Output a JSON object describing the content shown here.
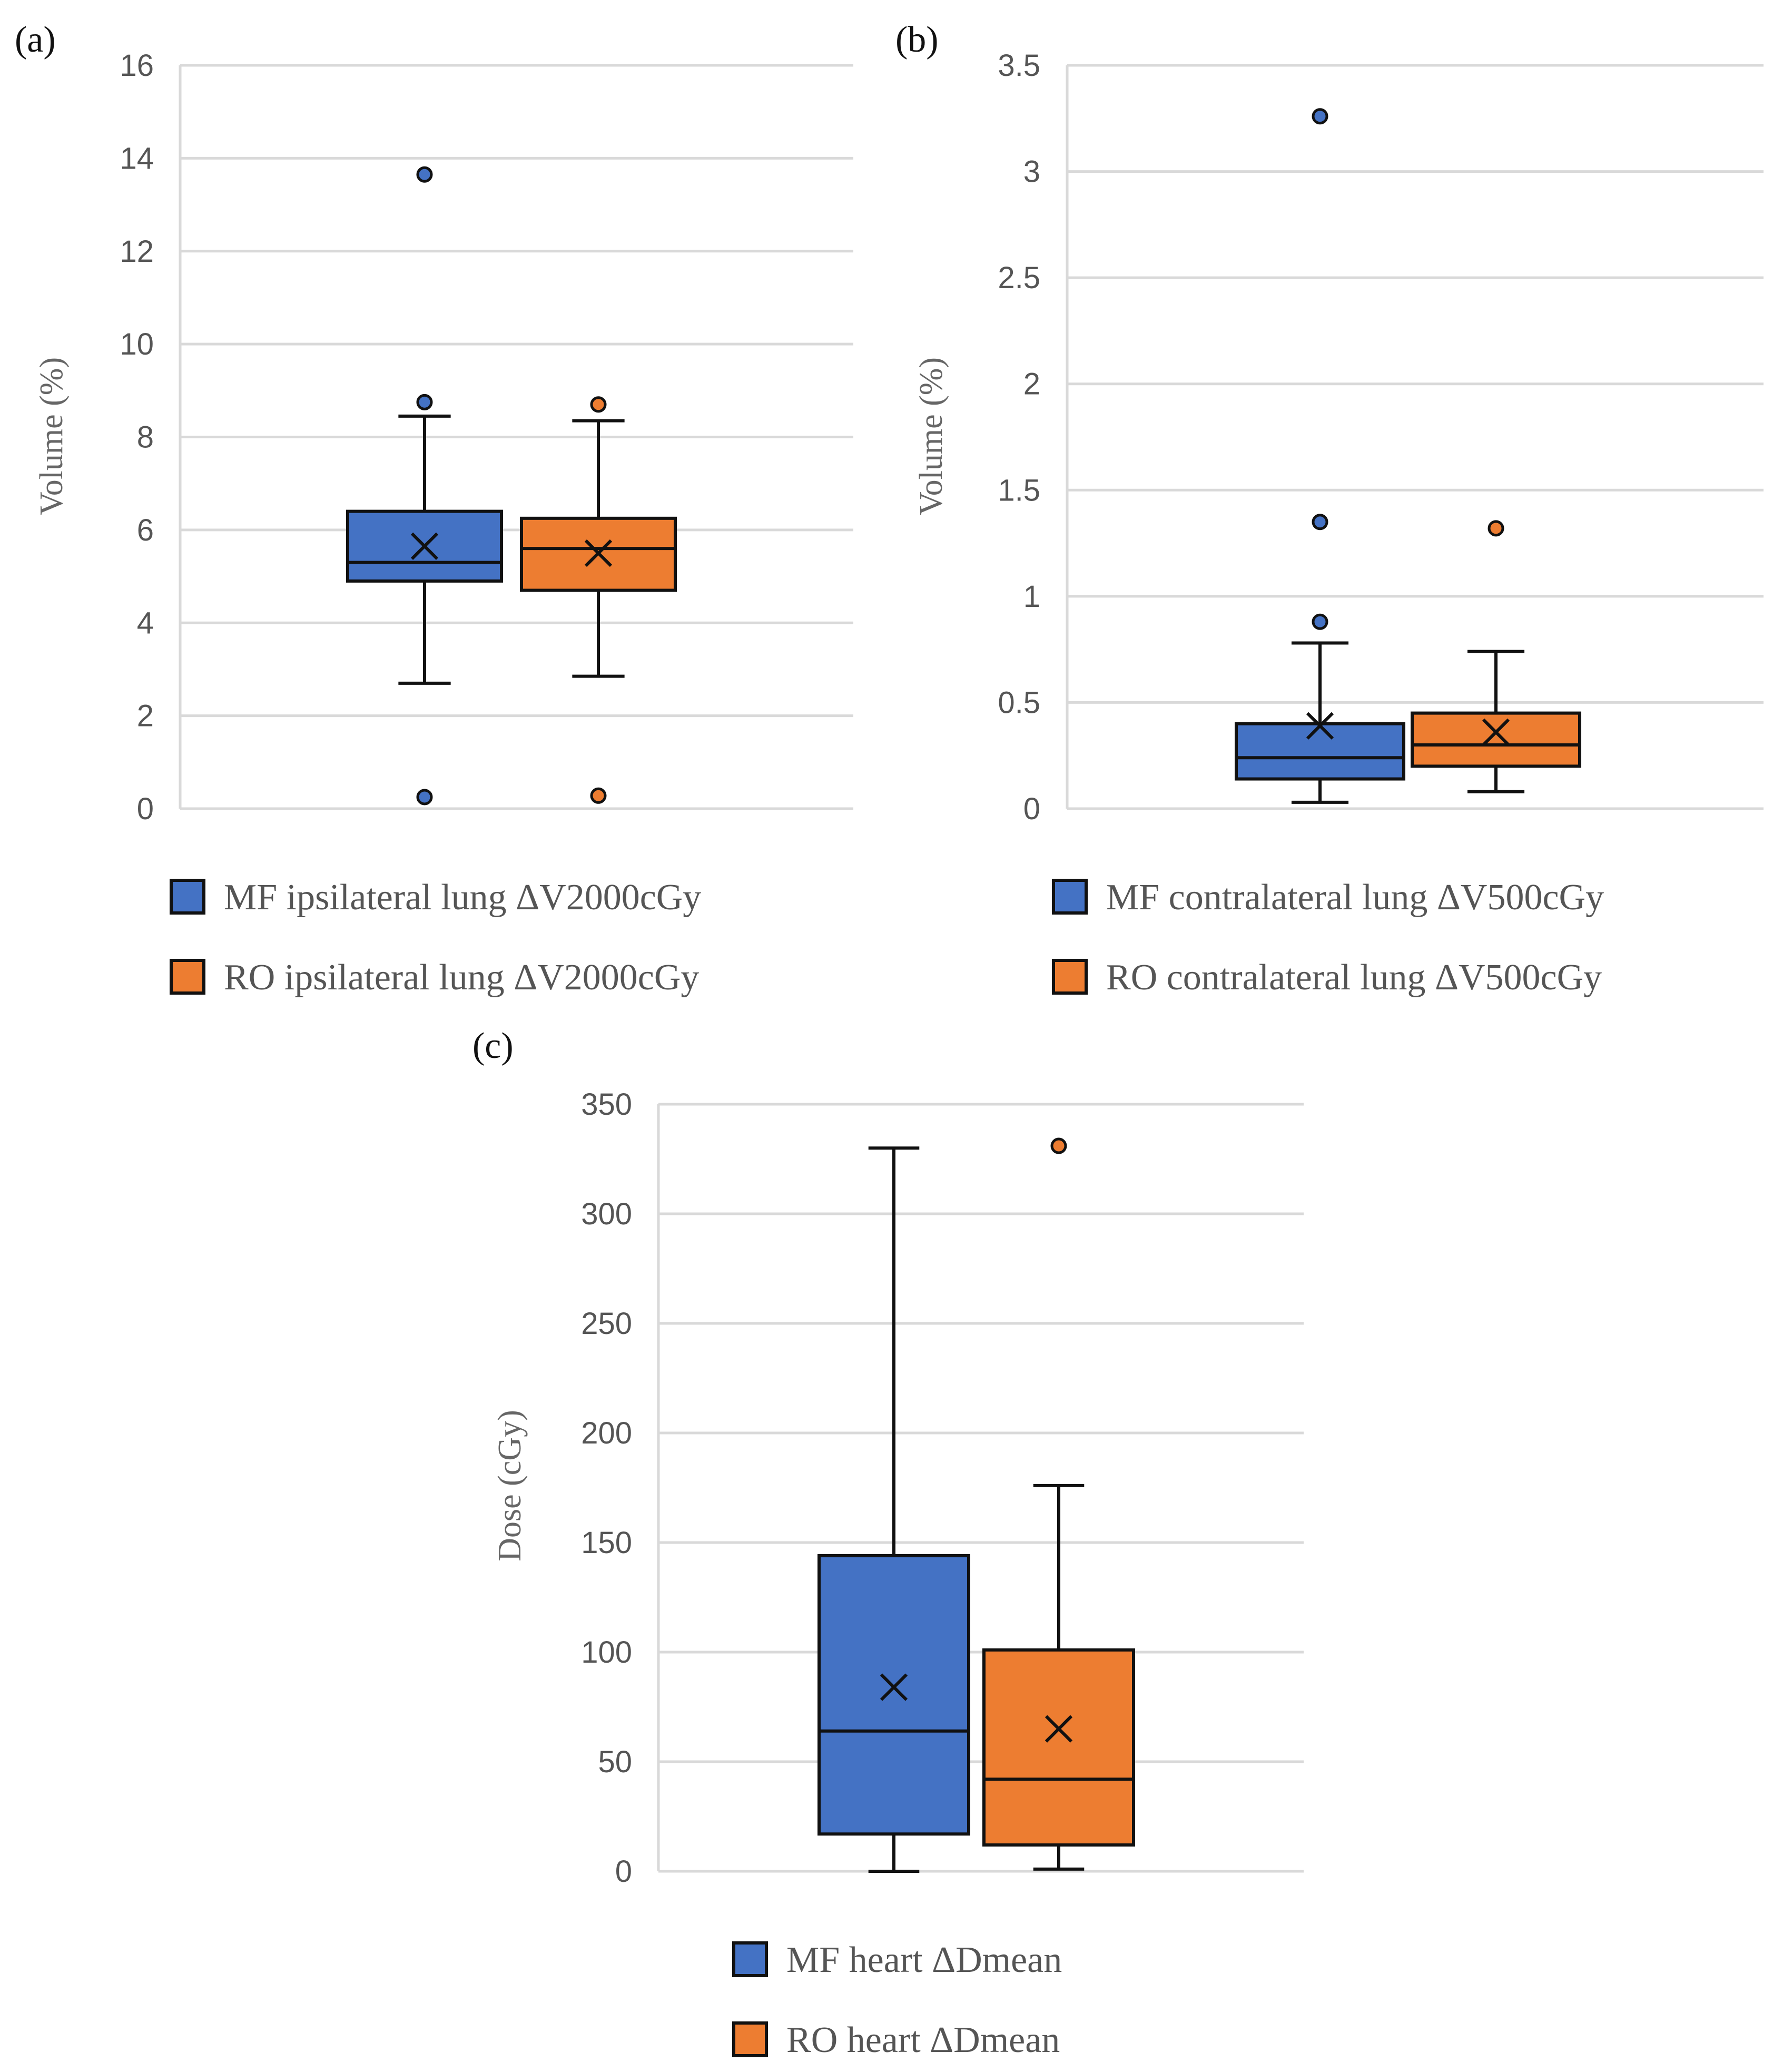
{
  "colors": {
    "mf": "#4472c4",
    "ro": "#ed7d31",
    "stroke": "#111111"
  },
  "chart_data": [
    {
      "type": "box",
      "panel_label": "(a)",
      "ylabel": "Volume (%)",
      "ylim": [
        0,
        16
      ],
      "yticks": [
        0,
        2,
        4,
        6,
        8,
        10,
        12,
        14,
        16
      ],
      "ytick_labels": [
        "0",
        "2",
        "4",
        "6",
        "8",
        "10",
        "12",
        "14",
        "16"
      ],
      "grid": true,
      "legend_position": "bottom",
      "series": [
        {
          "name": "MF ipsilateral lung ΔV2000cGy",
          "color": "#4472c4",
          "whisker_low": 2.7,
          "q1": 4.9,
          "median": 5.3,
          "q3": 6.4,
          "whisker_high": 8.45,
          "mean": 5.65,
          "outliers": [
            13.65,
            8.75,
            0.25
          ]
        },
        {
          "name": "RO ipsilateral lung ΔV2000cGy",
          "color": "#ed7d31",
          "whisker_low": 2.85,
          "q1": 4.7,
          "median": 5.6,
          "q3": 6.25,
          "whisker_high": 8.35,
          "mean": 5.5,
          "outliers": [
            8.7,
            0.28
          ]
        }
      ]
    },
    {
      "type": "box",
      "panel_label": "(b)",
      "ylabel": "Volume (%)",
      "ylim": [
        0,
        3.5
      ],
      "yticks": [
        0,
        0.5,
        1,
        1.5,
        2,
        2.5,
        3,
        3.5
      ],
      "ytick_labels": [
        "0",
        "0.5",
        "1",
        "1.5",
        "2",
        "2.5",
        "3",
        "3.5"
      ],
      "grid": true,
      "legend_position": "bottom",
      "series": [
        {
          "name": "MF contralateral lung ΔV500cGy",
          "color": "#4472c4",
          "whisker_low": 0.03,
          "q1": 0.14,
          "median": 0.24,
          "q3": 0.4,
          "whisker_high": 0.78,
          "mean": 0.39,
          "outliers": [
            3.26,
            1.35,
            0.88
          ]
        },
        {
          "name": "RO contralateral lung ΔV500cGy",
          "color": "#ed7d31",
          "whisker_low": 0.08,
          "q1": 0.2,
          "median": 0.3,
          "q3": 0.45,
          "whisker_high": 0.74,
          "mean": 0.36,
          "outliers": [
            1.32
          ]
        }
      ]
    },
    {
      "type": "box",
      "panel_label": "(c)",
      "ylabel": "Dose (cGy)",
      "ylim": [
        0,
        350
      ],
      "yticks": [
        0,
        50,
        100,
        150,
        200,
        250,
        300,
        350
      ],
      "ytick_labels": [
        "0",
        "50",
        "100",
        "150",
        "200",
        "250",
        "300",
        "350"
      ],
      "grid": true,
      "legend_position": "bottom",
      "series": [
        {
          "name": "MF heart ΔDmean",
          "color": "#4472c4",
          "whisker_low": 0,
          "q1": 17,
          "median": 64,
          "q3": 144,
          "whisker_high": 330,
          "mean": 84,
          "outliers": []
        },
        {
          "name": "RO heart ΔDmean",
          "color": "#ed7d31",
          "whisker_low": 1,
          "q1": 12,
          "median": 42,
          "q3": 101,
          "whisker_high": 176,
          "mean": 65,
          "outliers": [
            331
          ]
        }
      ]
    }
  ]
}
